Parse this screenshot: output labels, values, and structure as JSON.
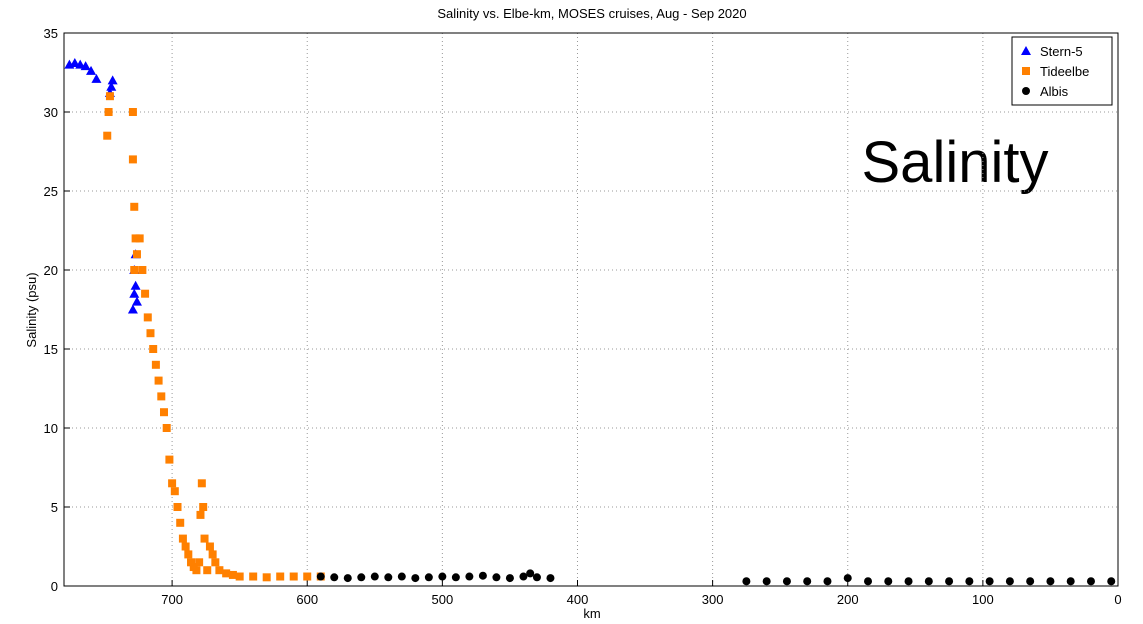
{
  "chart_data": {
    "type": "scatter",
    "title": "Salinity vs. Elbe-km, MOSES cruises, Aug - Sep 2020",
    "xlabel": "km",
    "ylabel": "Salinity (psu)",
    "annotation": "Salinity",
    "xlim": [
      780,
      0
    ],
    "ylim": [
      0,
      35
    ],
    "xticks": [
      700,
      600,
      500,
      400,
      300,
      200,
      100,
      0
    ],
    "yticks": [
      0,
      5,
      10,
      15,
      20,
      25,
      30,
      35
    ],
    "grid": true,
    "legend": "upper right",
    "series": [
      {
        "name": "Stern-5",
        "color": "#0000ff",
        "marker": "triangle",
        "x": [
          776,
          772,
          768,
          764,
          760,
          756,
          746,
          745,
          744,
          729,
          728,
          728,
          727,
          727,
          726
        ],
        "values": [
          33,
          33.1,
          33,
          32.9,
          32.6,
          32.1,
          31.2,
          31.6,
          32,
          17.5,
          18.5,
          20,
          21,
          19,
          18
        ]
      },
      {
        "name": "Tideelbe",
        "color": "#ff8000",
        "marker": "square",
        "x": [
          748,
          747,
          746,
          729,
          729,
          728,
          728,
          727,
          726,
          724,
          722,
          720,
          718,
          716,
          714,
          712,
          710,
          708,
          706,
          704,
          702,
          700,
          698,
          696,
          694,
          692,
          690,
          688,
          686,
          684,
          682,
          680,
          679,
          678,
          677,
          676,
          674,
          672,
          670,
          668,
          665,
          660,
          655,
          650,
          640,
          630,
          620,
          610,
          600,
          590
        ],
        "values": [
          28.5,
          30,
          31,
          30,
          27,
          24,
          20,
          22,
          21,
          22,
          20,
          18.5,
          17,
          16,
          15,
          14,
          13,
          12,
          11,
          10,
          8,
          6.5,
          6,
          5,
          4,
          3,
          2.5,
          2,
          1.5,
          1.2,
          1,
          1.5,
          4.5,
          6.5,
          5,
          3,
          1,
          2.5,
          2,
          1.5,
          1,
          0.8,
          0.7,
          0.6,
          0.6,
          0.55,
          0.6,
          0.6,
          0.6,
          0.6
        ]
      },
      {
        "name": "Albis",
        "color": "#000000",
        "marker": "circle",
        "x": [
          590,
          580,
          570,
          560,
          550,
          540,
          530,
          520,
          510,
          500,
          490,
          480,
          470,
          460,
          450,
          440,
          435,
          430,
          420,
          275,
          260,
          245,
          230,
          215,
          200,
          185,
          170,
          155,
          140,
          125,
          110,
          95,
          80,
          65,
          50,
          35,
          20,
          5
        ],
        "values": [
          0.6,
          0.55,
          0.5,
          0.55,
          0.6,
          0.55,
          0.6,
          0.5,
          0.55,
          0.6,
          0.55,
          0.6,
          0.65,
          0.55,
          0.5,
          0.6,
          0.8,
          0.55,
          0.5,
          0.3,
          0.3,
          0.3,
          0.3,
          0.3,
          0.5,
          0.3,
          0.3,
          0.3,
          0.3,
          0.3,
          0.3,
          0.3,
          0.3,
          0.3,
          0.3,
          0.3,
          0.3,
          0.3
        ]
      }
    ]
  }
}
